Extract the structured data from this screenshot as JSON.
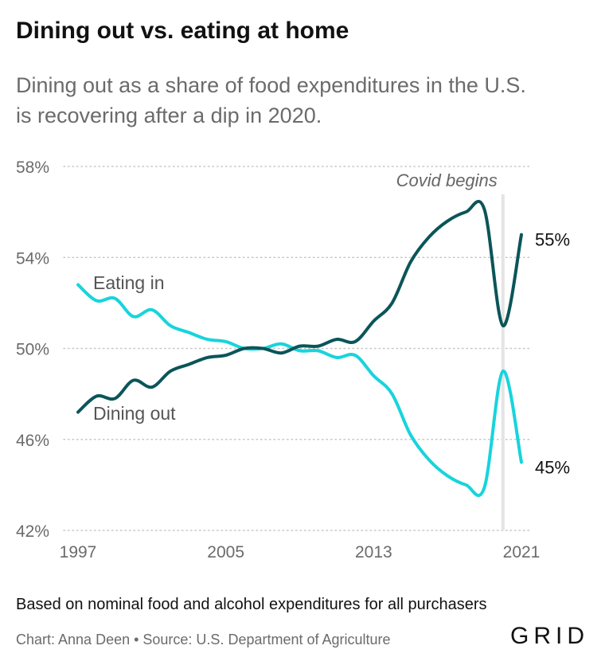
{
  "header": {
    "title": "Dining out vs. eating at home",
    "subtitle_line1": "Dining out as a share of food expenditures in the U.S.",
    "subtitle_line2": "is recovering after a dip in 2020."
  },
  "footer": {
    "note": "Based on nominal food and alcohol expenditures for all purchasers",
    "credit": "Chart: Anna Deen • Source: U.S. Department of Agriculture",
    "logo": "GRID"
  },
  "colors": {
    "dining_out": "#0b5559",
    "eating_in": "#17d4dc",
    "grid": "#c8c8c8",
    "axis_text": "#6b6b6b",
    "annotation_line": "#e4e4e4"
  },
  "chart_data": {
    "type": "line",
    "title": "Dining out vs. eating at home",
    "subtitle": "Dining out as a share of food expenditures in the U.S. is recovering after a dip in 2020.",
    "xlabel": "",
    "ylabel": "",
    "xlim": [
      1997,
      2021
    ],
    "ylim": [
      42,
      58
    ],
    "x_ticks": [
      1997,
      2005,
      2013,
      2021
    ],
    "x_tick_labels": [
      "1997",
      "2005",
      "2013",
      "2021"
    ],
    "y_ticks": [
      42,
      46,
      50,
      54,
      58
    ],
    "y_tick_labels": [
      "42%",
      "46%",
      "50%",
      "54%",
      "58%"
    ],
    "grid": "horizontal dotted",
    "legend": "inline labels",
    "x": [
      1997,
      1998,
      1999,
      2000,
      2001,
      2002,
      2003,
      2004,
      2005,
      2006,
      2007,
      2008,
      2009,
      2010,
      2011,
      2012,
      2013,
      2014,
      2015,
      2016,
      2017,
      2018,
      2019,
      2020,
      2021
    ],
    "series": [
      {
        "name": "Dining out",
        "values": [
          47.2,
          47.9,
          47.8,
          48.6,
          48.3,
          49.0,
          49.3,
          49.6,
          49.7,
          50.0,
          50.0,
          49.8,
          50.1,
          50.1,
          50.4,
          50.3,
          51.2,
          52.0,
          53.8,
          54.9,
          55.6,
          56.0,
          56.1,
          51.0,
          55.0
        ],
        "inline_label": "Dining out",
        "end_label": "55%"
      },
      {
        "name": "Eating in",
        "values": [
          52.8,
          52.1,
          52.2,
          51.4,
          51.7,
          51.0,
          50.7,
          50.4,
          50.3,
          50.0,
          50.0,
          50.2,
          49.9,
          49.9,
          49.6,
          49.7,
          48.8,
          48.0,
          46.2,
          45.1,
          44.4,
          44.0,
          43.9,
          49.0,
          45.0
        ],
        "inline_label": "Eating in",
        "end_label": "45%"
      }
    ],
    "annotations": [
      {
        "text": "Covid begins",
        "x": 2020
      }
    ]
  }
}
